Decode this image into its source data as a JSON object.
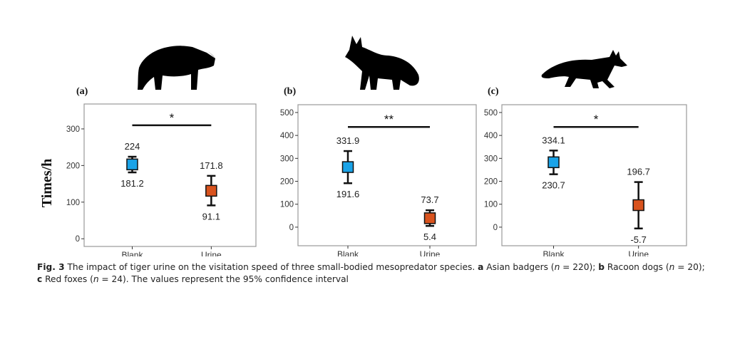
{
  "ylabel": "Times/h",
  "caption": [
    {
      "text": "Fig. 3",
      "style": "bold"
    },
    {
      "text": "  The impact of tiger urine on the visitation speed of three small-bodied mesopredator species. ",
      "style": "normal"
    },
    {
      "text": "a",
      "style": "bold"
    },
    {
      "text": " Asian badgers (",
      "style": "normal"
    },
    {
      "text": "n",
      "style": "italic"
    },
    {
      "text": " = 220); ",
      "style": "normal"
    },
    {
      "text": "b",
      "style": "bold"
    },
    {
      "text": " Racoon dogs (",
      "style": "normal"
    },
    {
      "text": "n",
      "style": "italic"
    },
    {
      "text": " = 20); ",
      "style": "normal"
    },
    {
      "text": "c",
      "style": "bold"
    },
    {
      "text": " Red foxes (",
      "style": "normal"
    },
    {
      "text": "n",
      "style": "italic"
    },
    {
      "text": " = 24). The values represent the 95% confidence interval",
      "style": "normal"
    }
  ],
  "colors": {
    "blank": "#1aa3e8",
    "urine": "#d9531e",
    "frame": "#999999"
  },
  "icons": [
    "badger-silhouette",
    "raccoon-dog-silhouette",
    "fox-silhouette"
  ],
  "chart_data": [
    {
      "type": "errorbar",
      "panel_label": "(a)",
      "categories": [
        "Blank",
        "Urine"
      ],
      "mean": [
        203,
        131
      ],
      "upper": [
        224,
        171.8
      ],
      "lower": [
        181.2,
        91.1
      ],
      "upper_labels": [
        "224",
        "171.8"
      ],
      "lower_labels": [
        "181.2",
        "91.1"
      ],
      "yticks": [
        0,
        100,
        200,
        300
      ],
      "ylim": [
        -21,
        368
      ],
      "significance": "*",
      "significance_y": 310,
      "grid": false
    },
    {
      "type": "errorbar",
      "panel_label": "(b)",
      "categories": [
        "Blank",
        "Urine"
      ],
      "mean": [
        262,
        39
      ],
      "upper": [
        331.9,
        73.7
      ],
      "lower": [
        191.6,
        5.4
      ],
      "upper_labels": [
        "331.9",
        "73.7"
      ],
      "lower_labels": [
        "191.6",
        "5.4"
      ],
      "yticks": [
        0,
        100,
        200,
        300,
        400,
        500
      ],
      "ylim": [
        -81,
        534
      ],
      "significance": "**",
      "significance_y": 437,
      "grid": false
    },
    {
      "type": "errorbar",
      "panel_label": "(c)",
      "categories": [
        "Blank",
        "Urine"
      ],
      "mean": [
        283,
        96
      ],
      "upper": [
        334.1,
        196.7
      ],
      "lower": [
        230.7,
        -5.7
      ],
      "upper_labels": [
        "334.1",
        "196.7"
      ],
      "lower_labels": [
        "230.7",
        "-5.7"
      ],
      "yticks": [
        0,
        100,
        200,
        300,
        400,
        500
      ],
      "ylim": [
        -81,
        534
      ],
      "significance": "*",
      "significance_y": 437,
      "grid": false
    }
  ]
}
